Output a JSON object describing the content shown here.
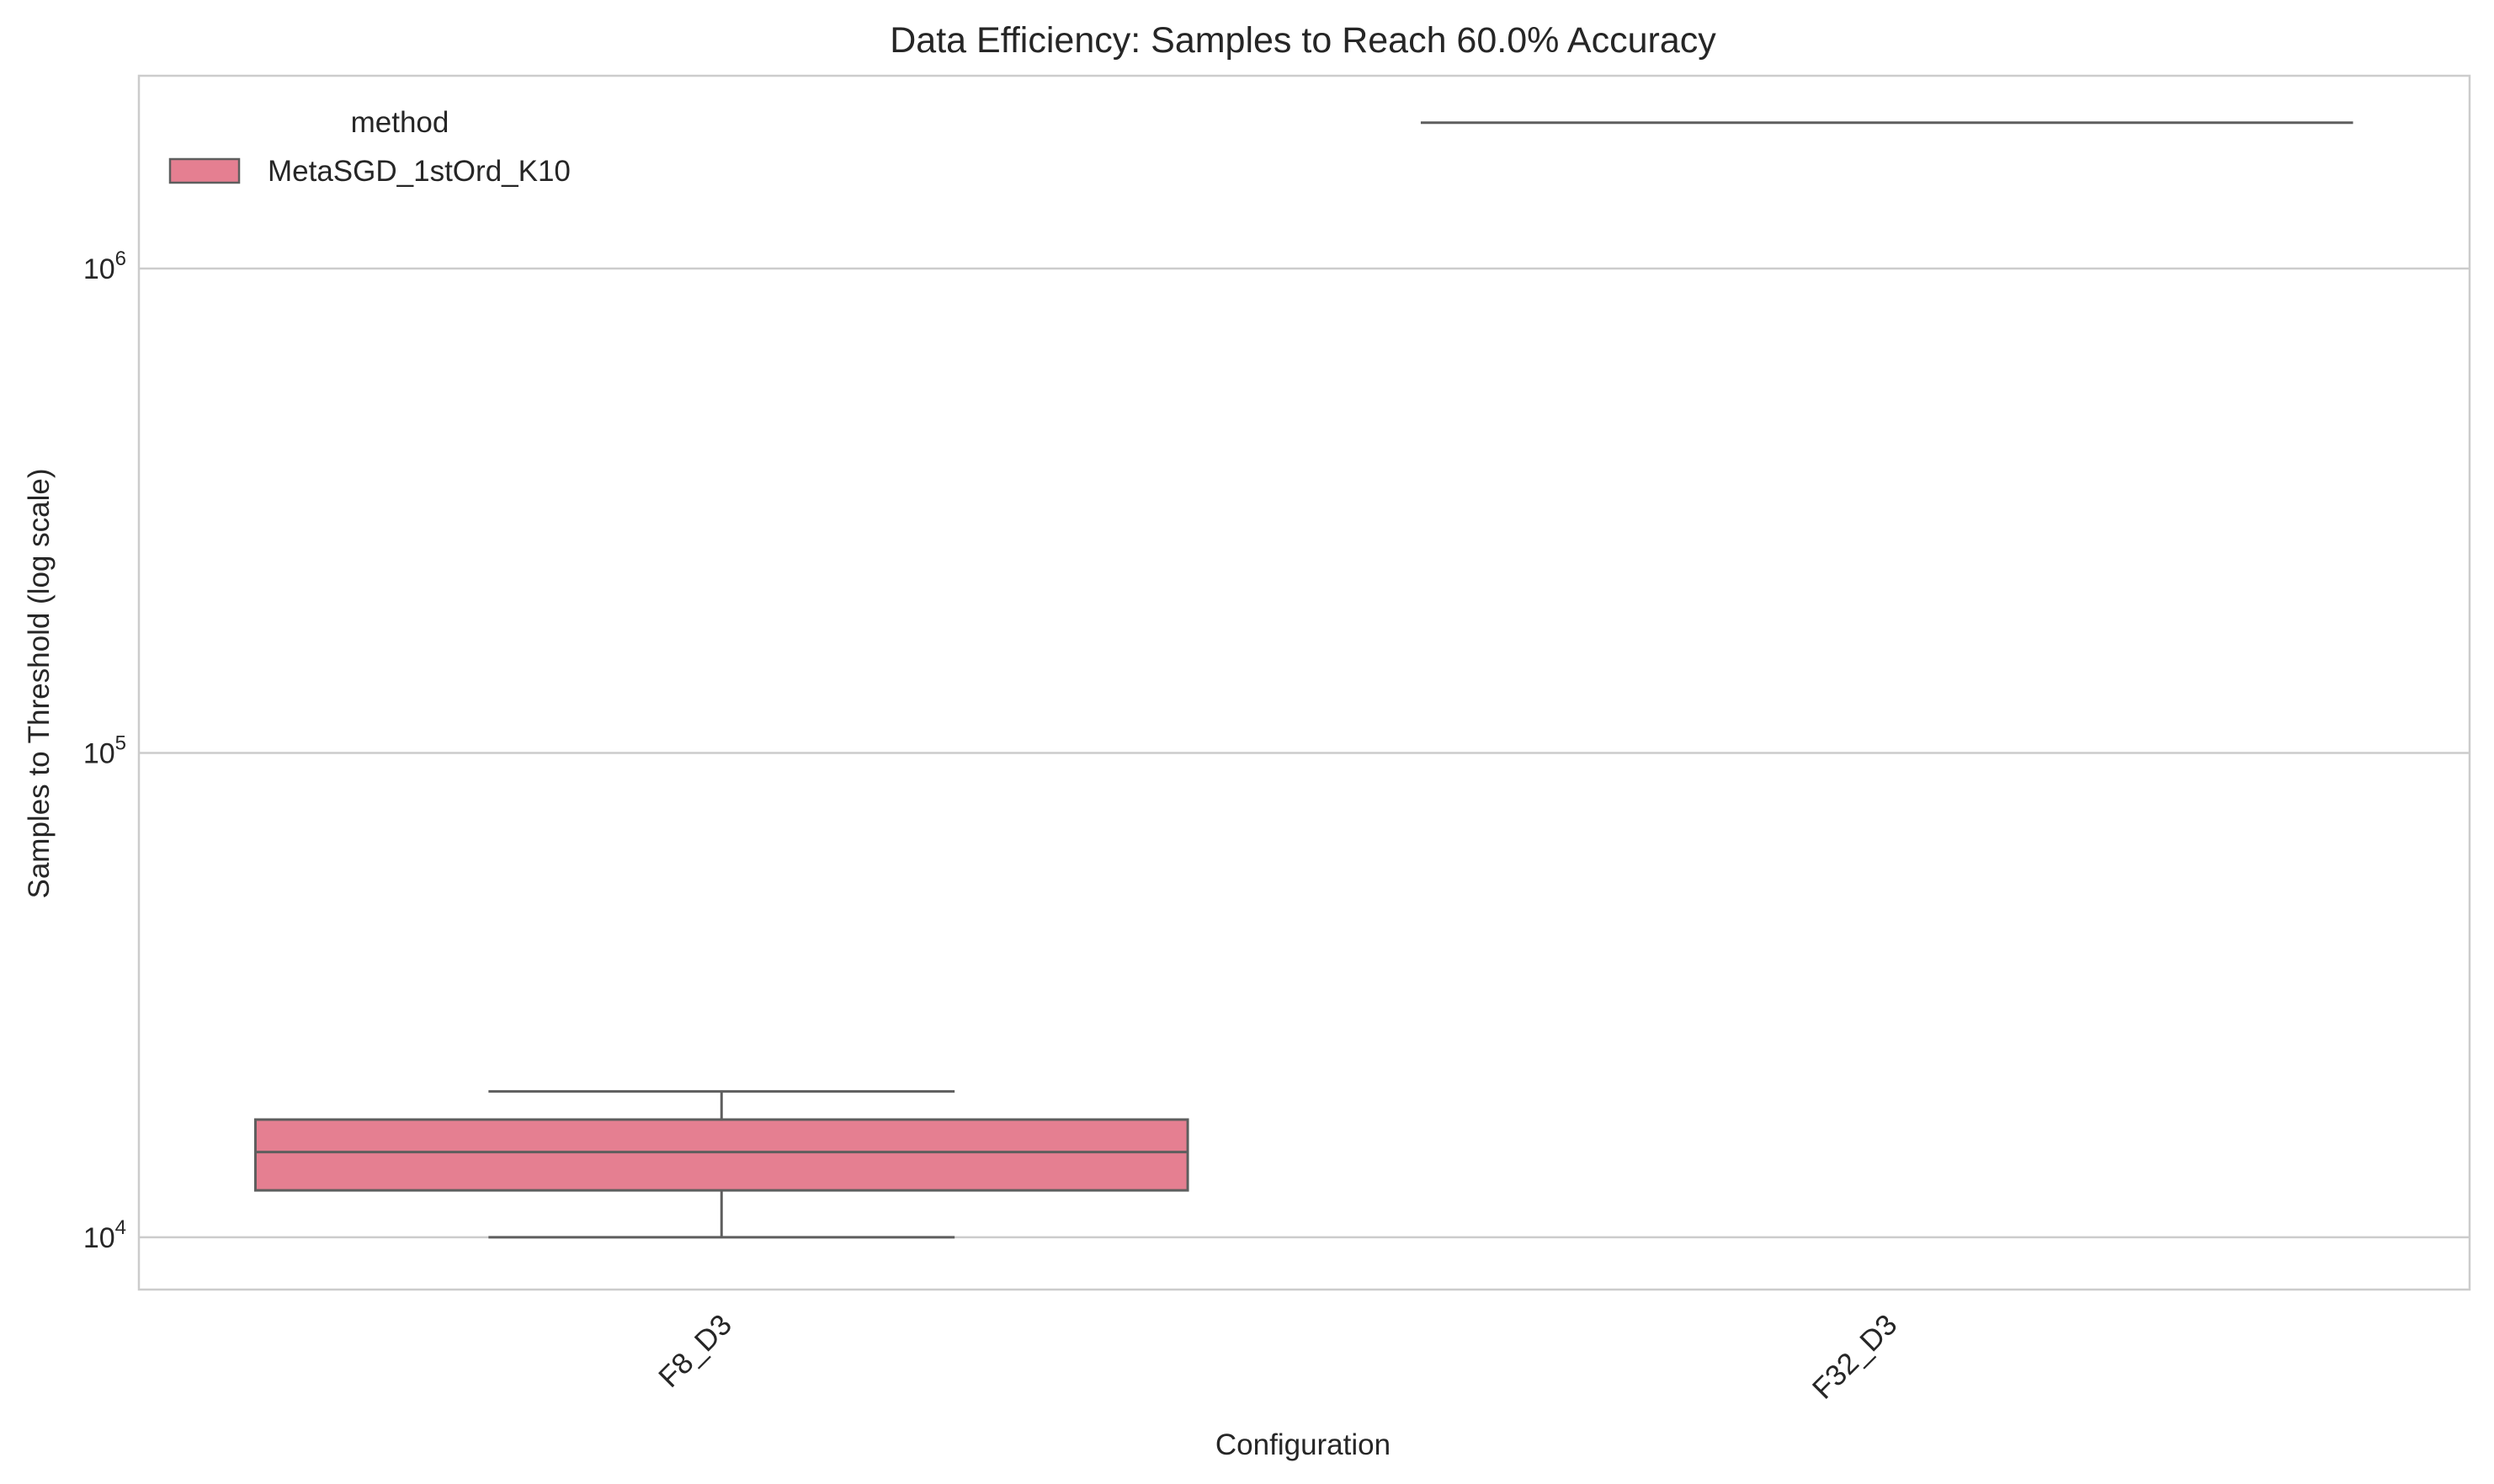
{
  "chart_data": {
    "type": "box",
    "title": "Data Efficiency: Samples to Reach 60.0% Accuracy",
    "xlabel": "Configuration",
    "ylabel": "Samples to Threshold (log scale)",
    "yscale": "log",
    "ylim": [
      7800,
      2500000
    ],
    "yticks": [
      {
        "value": 10000,
        "base": "10",
        "exp": "4"
      },
      {
        "value": 100000,
        "base": "10",
        "exp": "5"
      },
      {
        "value": 1000000,
        "base": "10",
        "exp": "6"
      }
    ],
    "categories": [
      "F8_D3",
      "F32_D3"
    ],
    "grid": true,
    "legend": {
      "title": "method",
      "placement": "top-left",
      "entries": [
        {
          "name": "MetaSGD_1stOrd_K10",
          "color": "#e57f91"
        }
      ]
    },
    "series": [
      {
        "name": "MetaSGD_1stOrd_K10",
        "color": "#e57f91",
        "boxes": [
          {
            "category": "F8_D3",
            "whisker_low": 10000,
            "q1": 12500,
            "median": 15000,
            "q3": 17500,
            "whisker_high": 20000
          },
          {
            "category": "F32_D3",
            "whisker_low": 2000000,
            "q1": 2000000,
            "median": 2000000,
            "q3": 2000000,
            "whisker_high": 2000000
          }
        ]
      }
    ]
  }
}
